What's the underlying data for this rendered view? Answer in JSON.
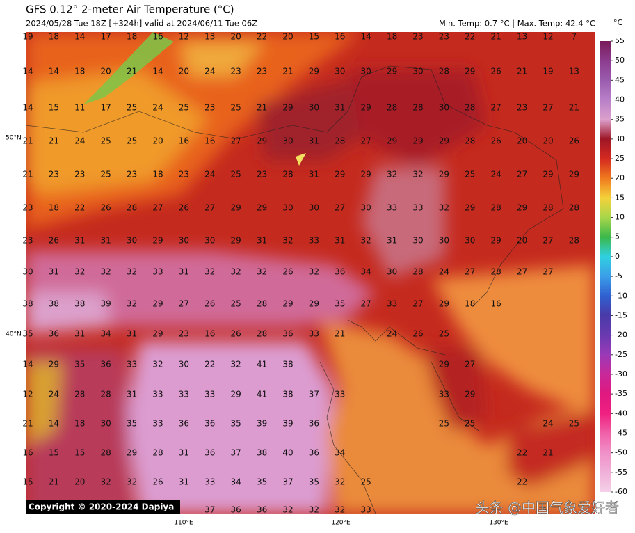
{
  "header": {
    "title": "GFS 0.12° 2-meter Air Temperature (°C)",
    "subtitle": "2024/05/28 Tue 18Z [+324h] valid at 2024/06/11 Tue 06Z",
    "stats": "Min. Temp: 0.7 °C | Max. Temp: 42.4 °C"
  },
  "colorbar": {
    "unit": "°C",
    "ticks": [
      55,
      50,
      45,
      40,
      35,
      30,
      25,
      20,
      15,
      10,
      5,
      0,
      -5,
      -10,
      -15,
      -20,
      -25,
      -30,
      -35,
      -40,
      -45,
      -50,
      -55,
      -60
    ],
    "colors": [
      "#7a1a5a",
      "#8c3c8e",
      "#9a5cae",
      "#b880c8",
      "#dca0cc",
      "#9e1626",
      "#d42a20",
      "#f07a1e",
      "#f4d23a",
      "#a8d64a",
      "#3cb84a",
      "#30d0e0",
      "#3a9ee8",
      "#3060d0",
      "#4a3aa8",
      "#6a3ab0",
      "#9a3ab8",
      "#c82898",
      "#e01880",
      "#f02080",
      "#f060a8",
      "#f090c8",
      "#f0b0d8",
      "#f4d0e8"
    ]
  },
  "map": {
    "lat_labels": [
      "50°N",
      "40°N"
    ],
    "lon_labels": [
      "110°E",
      "120°E",
      "130°E"
    ],
    "grid": [
      [
        19,
        18,
        14,
        17,
        18,
        16,
        12,
        13,
        20,
        22,
        20,
        15,
        16,
        14,
        18,
        23,
        23,
        22,
        21,
        13,
        12,
        7
      ],
      [
        14,
        14,
        18,
        20,
        21,
        14,
        20,
        24,
        23,
        23,
        21,
        29,
        30,
        30,
        29,
        30,
        28,
        29,
        26,
        21,
        19,
        13
      ],
      [
        14,
        15,
        11,
        17,
        25,
        24,
        25,
        23,
        25,
        21,
        29,
        30,
        31,
        29,
        28,
        28,
        30,
        28,
        27,
        23,
        27,
        21
      ],
      [
        21,
        21,
        24,
        25,
        25,
        20,
        16,
        16,
        27,
        29,
        30,
        31,
        28,
        27,
        29,
        29,
        29,
        28,
        26,
        20,
        20,
        26
      ],
      [
        21,
        23,
        23,
        25,
        23,
        18,
        23,
        24,
        25,
        23,
        28,
        31,
        29,
        29,
        32,
        32,
        29,
        25,
        24,
        27,
        29,
        29
      ],
      [
        23,
        18,
        22,
        26,
        28,
        27,
        26,
        27,
        29,
        29,
        30,
        30,
        27,
        30,
        33,
        33,
        32,
        29,
        28,
        29,
        28,
        28
      ],
      [
        23,
        26,
        31,
        31,
        30,
        29,
        30,
        30,
        29,
        31,
        32,
        33,
        31,
        32,
        31,
        30,
        30,
        30,
        29,
        20,
        27,
        28
      ],
      [
        30,
        31,
        32,
        32,
        32,
        33,
        31,
        32,
        32,
        32,
        26,
        32,
        36,
        34,
        30,
        28,
        24,
        27,
        28,
        27,
        27,
        null
      ],
      [
        38,
        38,
        38,
        39,
        32,
        29,
        27,
        26,
        25,
        28,
        29,
        29,
        35,
        27,
        33,
        27,
        29,
        18,
        16,
        null,
        null,
        null
      ],
      [
        35,
        36,
        31,
        34,
        31,
        29,
        23,
        16,
        26,
        28,
        36,
        33,
        21,
        null,
        24,
        26,
        25,
        null,
        null,
        null,
        null,
        null
      ],
      [
        14,
        29,
        35,
        36,
        33,
        32,
        30,
        22,
        32,
        41,
        38,
        null,
        null,
        null,
        null,
        null,
        29,
        27,
        null,
        null,
        null,
        null
      ],
      [
        12,
        24,
        28,
        28,
        31,
        33,
        33,
        33,
        29,
        41,
        38,
        37,
        33,
        null,
        null,
        null,
        33,
        29,
        null,
        null,
        null,
        null
      ],
      [
        21,
        14,
        18,
        30,
        35,
        33,
        36,
        36,
        35,
        39,
        39,
        36,
        null,
        null,
        null,
        null,
        25,
        25,
        null,
        null,
        24,
        25
      ],
      [
        16,
        15,
        15,
        28,
        29,
        28,
        31,
        36,
        37,
        38,
        40,
        36,
        34,
        null,
        null,
        null,
        null,
        null,
        null,
        22,
        21,
        null
      ],
      [
        15,
        21,
        20,
        32,
        32,
        26,
        31,
        33,
        34,
        35,
        37,
        35,
        32,
        25,
        null,
        null,
        null,
        null,
        null,
        22,
        null,
        null
      ],
      [
        null,
        null,
        null,
        null,
        null,
        null,
        null,
        37,
        36,
        36,
        32,
        32,
        32,
        33,
        null,
        null,
        null,
        null,
        null,
        null,
        null,
        null
      ]
    ]
  },
  "footer": {
    "copyright": "Copyright © 2020-2024 Dapiya",
    "watermark": "头条 @中国气象爱好者"
  }
}
